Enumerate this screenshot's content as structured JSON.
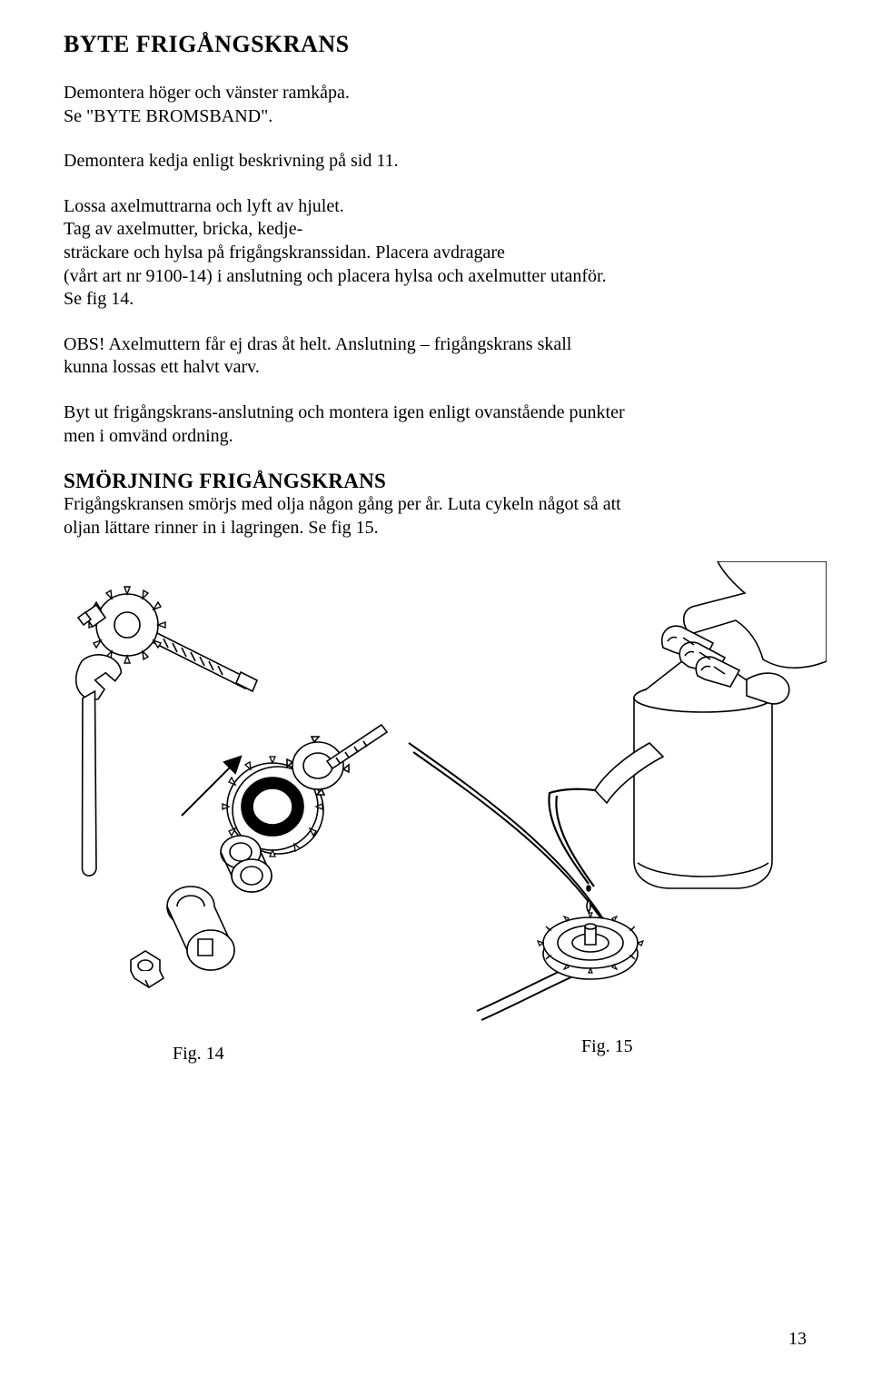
{
  "title": "BYTE FRIGÅNGSKRANS",
  "p1": "Demontera höger och vänster ramkåpa.\nSe \"BYTE BROMSBAND\".",
  "p2": "Demontera kedja enligt beskrivning på sid 11.",
  "p3": "Lossa axelmuttrarna och lyft av hjulet.\nTag av axelmutter, bricka, kedje-\nsträckare och hylsa på frigångskranssidan. Placera avdragare\n(vårt art nr 9100-14) i anslutning och placera hylsa och axelmutter utanför.\n Se fig 14.",
  "p4": "OBS! Axelmuttern får ej dras åt helt. Anslutning – frigångskrans skall\nkunna lossas ett halvt varv.",
  "p5": "Byt ut frigångskrans-anslutning och montera igen enligt ovanstående punkter\nmen i omvänd ordning.",
  "section2_title": "SMÖRJNING FRIGÅNGSKRANS",
  "p6": "Frigångskransen smörjs med olja någon gång per år. Luta cykeln något så att\noljan lättare rinner in i lagringen. Se fig 15.",
  "fig14_caption": "Fig. 14",
  "fig15_caption": "Fig. 15",
  "page_number": "13",
  "colors": {
    "text": "#000000",
    "background": "#ffffff",
    "stroke": "#000000",
    "fill": "#ffffff"
  },
  "typography": {
    "title_fontsize_pt": 19,
    "body_fontsize_pt": 15,
    "family": "Times New Roman"
  },
  "figures": {
    "fig14": {
      "type": "technical-line-drawing",
      "description": "Exploded view of freewheel sprocket removal with wrench and puller tool",
      "stroke_width": 1.5,
      "stroke_color": "#000000"
    },
    "fig15": {
      "type": "technical-line-drawing",
      "description": "Hand holding oil can applying oil to freewheel sprocket on bicycle frame",
      "stroke_width": 1.5,
      "stroke_color": "#000000"
    }
  }
}
